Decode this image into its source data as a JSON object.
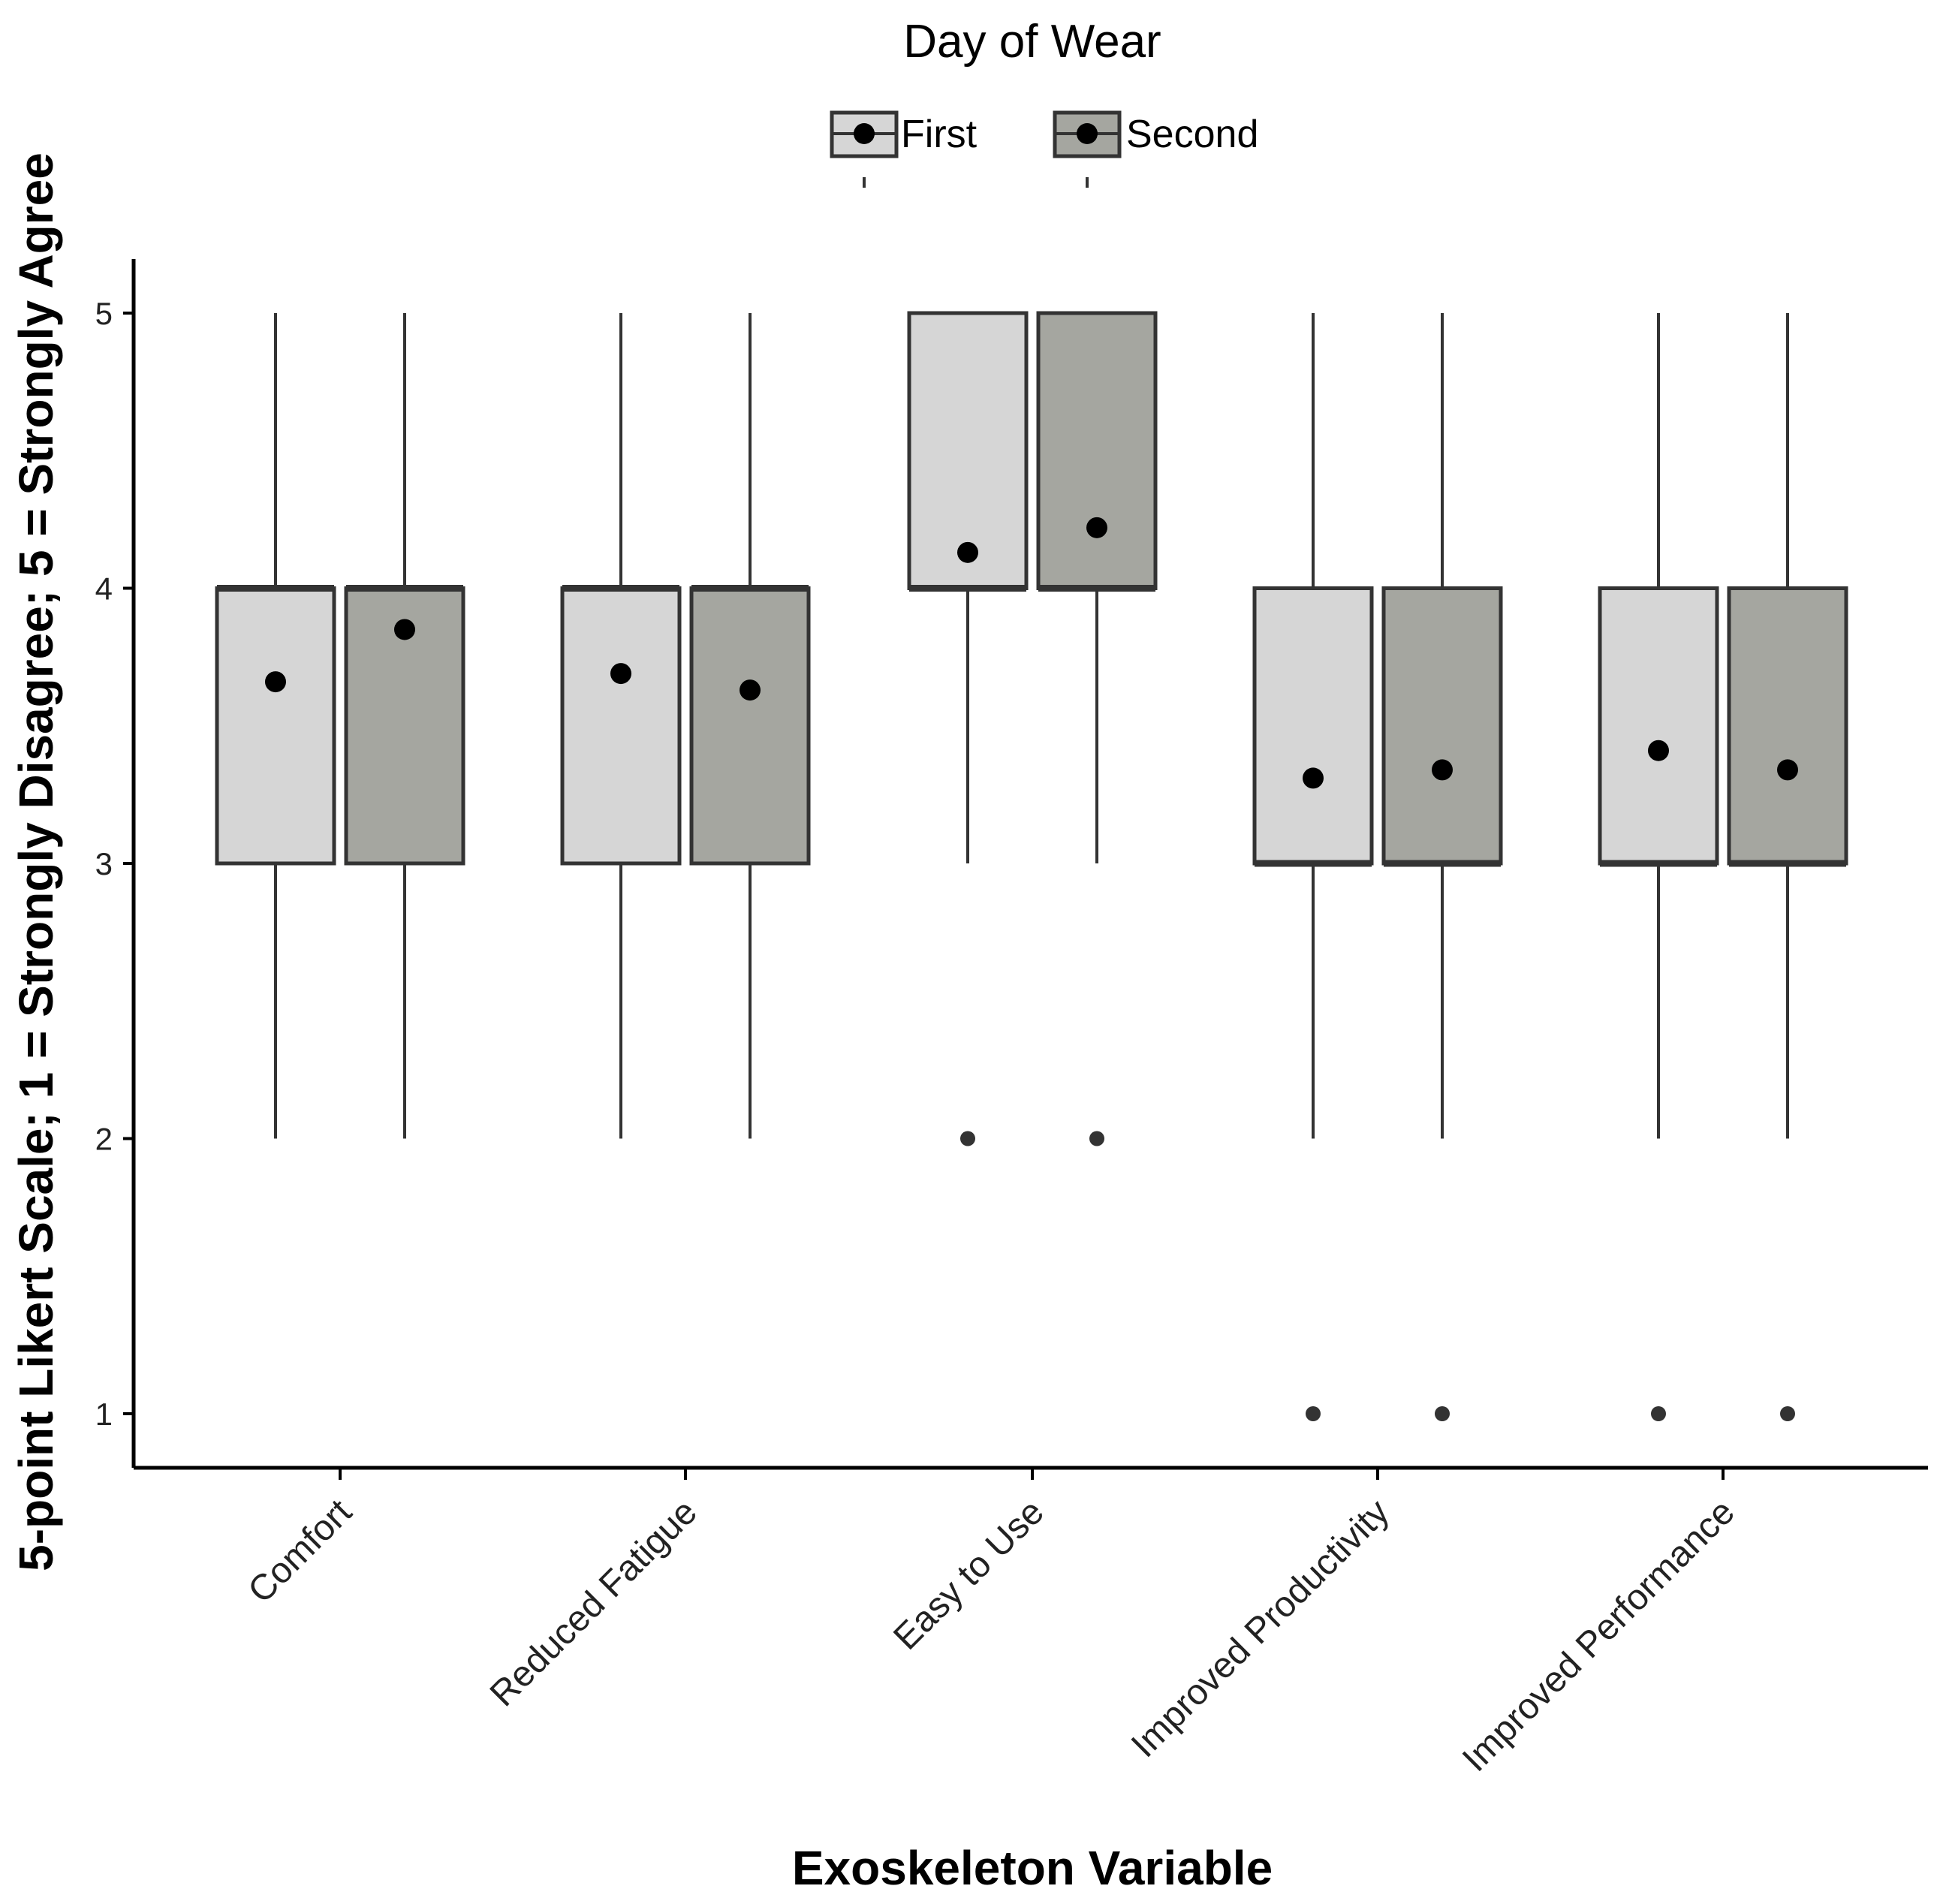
{
  "chart_data": {
    "type": "boxplot",
    "xlabel": "Exoskeleton Variable",
    "ylabel": "5-point Likert Scale; 1 = Strongly Disagree; 5 = Strongly Agree",
    "ylim": [
      0.8,
      5.2
    ],
    "yticks": [
      1,
      2,
      3,
      4,
      5
    ],
    "categories": [
      "Comfort",
      "Reduced Fatigue",
      "Easy to Use",
      "Improved Productivity",
      "Improved Performance"
    ],
    "legend": {
      "title": "Day of Wear",
      "position": "top-center",
      "entries": [
        {
          "name": "First",
          "color": "#d6d6d6"
        },
        {
          "name": "Second",
          "color": "#a5a6a0"
        }
      ]
    },
    "series": [
      {
        "name": "First",
        "color": "#d6d6d6",
        "boxes": [
          {
            "category": "Comfort",
            "whisker_low": 2,
            "q1": 3,
            "median": 4,
            "q3": 4,
            "whisker_high": 5,
            "mean": 3.66,
            "outliers": []
          },
          {
            "category": "Reduced Fatigue",
            "whisker_low": 2,
            "q1": 3,
            "median": 4,
            "q3": 4,
            "whisker_high": 5,
            "mean": 3.69,
            "outliers": []
          },
          {
            "category": "Easy to Use",
            "whisker_low": 3,
            "q1": 4,
            "median": 4,
            "q3": 5,
            "whisker_high": 5,
            "mean": 4.13,
            "outliers": [
              2
            ]
          },
          {
            "category": "Improved Productivity",
            "whisker_low": 2,
            "q1": 3,
            "median": 3,
            "q3": 4,
            "whisker_high": 5,
            "mean": 3.31,
            "outliers": [
              1
            ]
          },
          {
            "category": "Improved Performance",
            "whisker_low": 2,
            "q1": 3,
            "median": 3,
            "q3": 4,
            "whisker_high": 5,
            "mean": 3.41,
            "outliers": [
              1
            ]
          }
        ]
      },
      {
        "name": "Second",
        "color": "#a5a6a0",
        "boxes": [
          {
            "category": "Comfort",
            "whisker_low": 2,
            "q1": 3,
            "median": 4,
            "q3": 4,
            "whisker_high": 5,
            "mean": 3.85,
            "outliers": []
          },
          {
            "category": "Reduced Fatigue",
            "whisker_low": 2,
            "q1": 3,
            "median": 4,
            "q3": 4,
            "whisker_high": 5,
            "mean": 3.63,
            "outliers": []
          },
          {
            "category": "Easy to Use",
            "whisker_low": 3,
            "q1": 4,
            "median": 4,
            "q3": 5,
            "whisker_high": 5,
            "mean": 4.22,
            "outliers": [
              2
            ]
          },
          {
            "category": "Improved Productivity",
            "whisker_low": 2,
            "q1": 3,
            "median": 3,
            "q3": 4,
            "whisker_high": 5,
            "mean": 3.34,
            "outliers": [
              1
            ]
          },
          {
            "category": "Improved Performance",
            "whisker_low": 2,
            "q1": 3,
            "median": 3,
            "q3": 4,
            "whisker_high": 5,
            "mean": 3.34,
            "outliers": [
              1
            ]
          }
        ]
      }
    ]
  }
}
